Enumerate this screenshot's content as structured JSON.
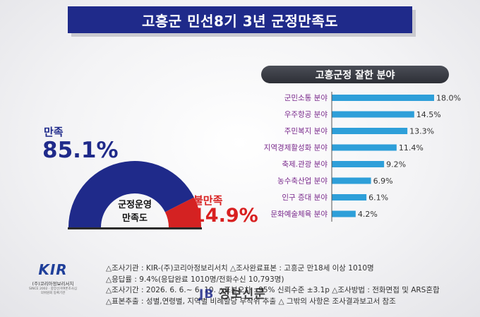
{
  "title": "고흥군 민선8기 3년 군정만족도",
  "subtitle": "고흥군정 잘한 분야",
  "gauge": {
    "center_line1": "군정운영",
    "center_line2": "만족도",
    "satisfied_label": "만족",
    "satisfied_value": "85.1%",
    "dissatisfied_label": "불만족",
    "dissatisfied_value": "14.9%",
    "satisfied_color": "#1f2a8a",
    "dissatisfied_color": "#d42222"
  },
  "chart_data": [
    {
      "type": "pie",
      "categories": [
        "만족",
        "불만족"
      ],
      "values": [
        85.1,
        14.9
      ],
      "colors": [
        "#1f2a8a",
        "#d42222"
      ]
    },
    {
      "type": "bar",
      "title": "고흥군정 잘한 분야",
      "categories": [
        "군민소통 분야",
        "우주항공 분야",
        "주민복지 분야",
        "지역경제활성화 분야",
        "축제.관광 분야",
        "농수축산업 분야",
        "인구 증대 분야",
        "문화예술체육 분야"
      ],
      "values": [
        18.0,
        14.5,
        13.3,
        11.4,
        9.2,
        6.9,
        6.1,
        4.2
      ],
      "value_labels": [
        "18.0%",
        "14.5%",
        "13.3%",
        "11.4%",
        "9.2%",
        "6.9%",
        "6.1%",
        "4.2%"
      ],
      "bar_color": "#2e9fd9",
      "label_color": "#7a2a8c",
      "orientation": "horizontal"
    }
  ],
  "notes": [
    "△조사기관 : KIR-(주)코리아정보리서치 △조사완료표본 : 고흥군 만18세 이상 1010명",
    "△응답률 : 9.4%(응답완료 1010명/전화수신 10,793명)",
    "△조사기간 : 2026. 6. 6.~ 6. 10. △표본오차 : 95% 신뢰수준 ±3.1p △조사방법 : 전화면접 및 ARS혼합",
    "△표본추출 : 성별,연령별, 지역별 비례할당 무작위 추출 △ 그밖의 사항은 조사결과보고서 참조"
  ],
  "logo": {
    "mark": "KIR",
    "name": "(주)코리아정보리서치",
    "sub": "SINCE 2002 · 중앙선거여론조사심의위원회 등록기관"
  },
  "watermark": {
    "prefix": "JB",
    "text": "정보신문"
  }
}
